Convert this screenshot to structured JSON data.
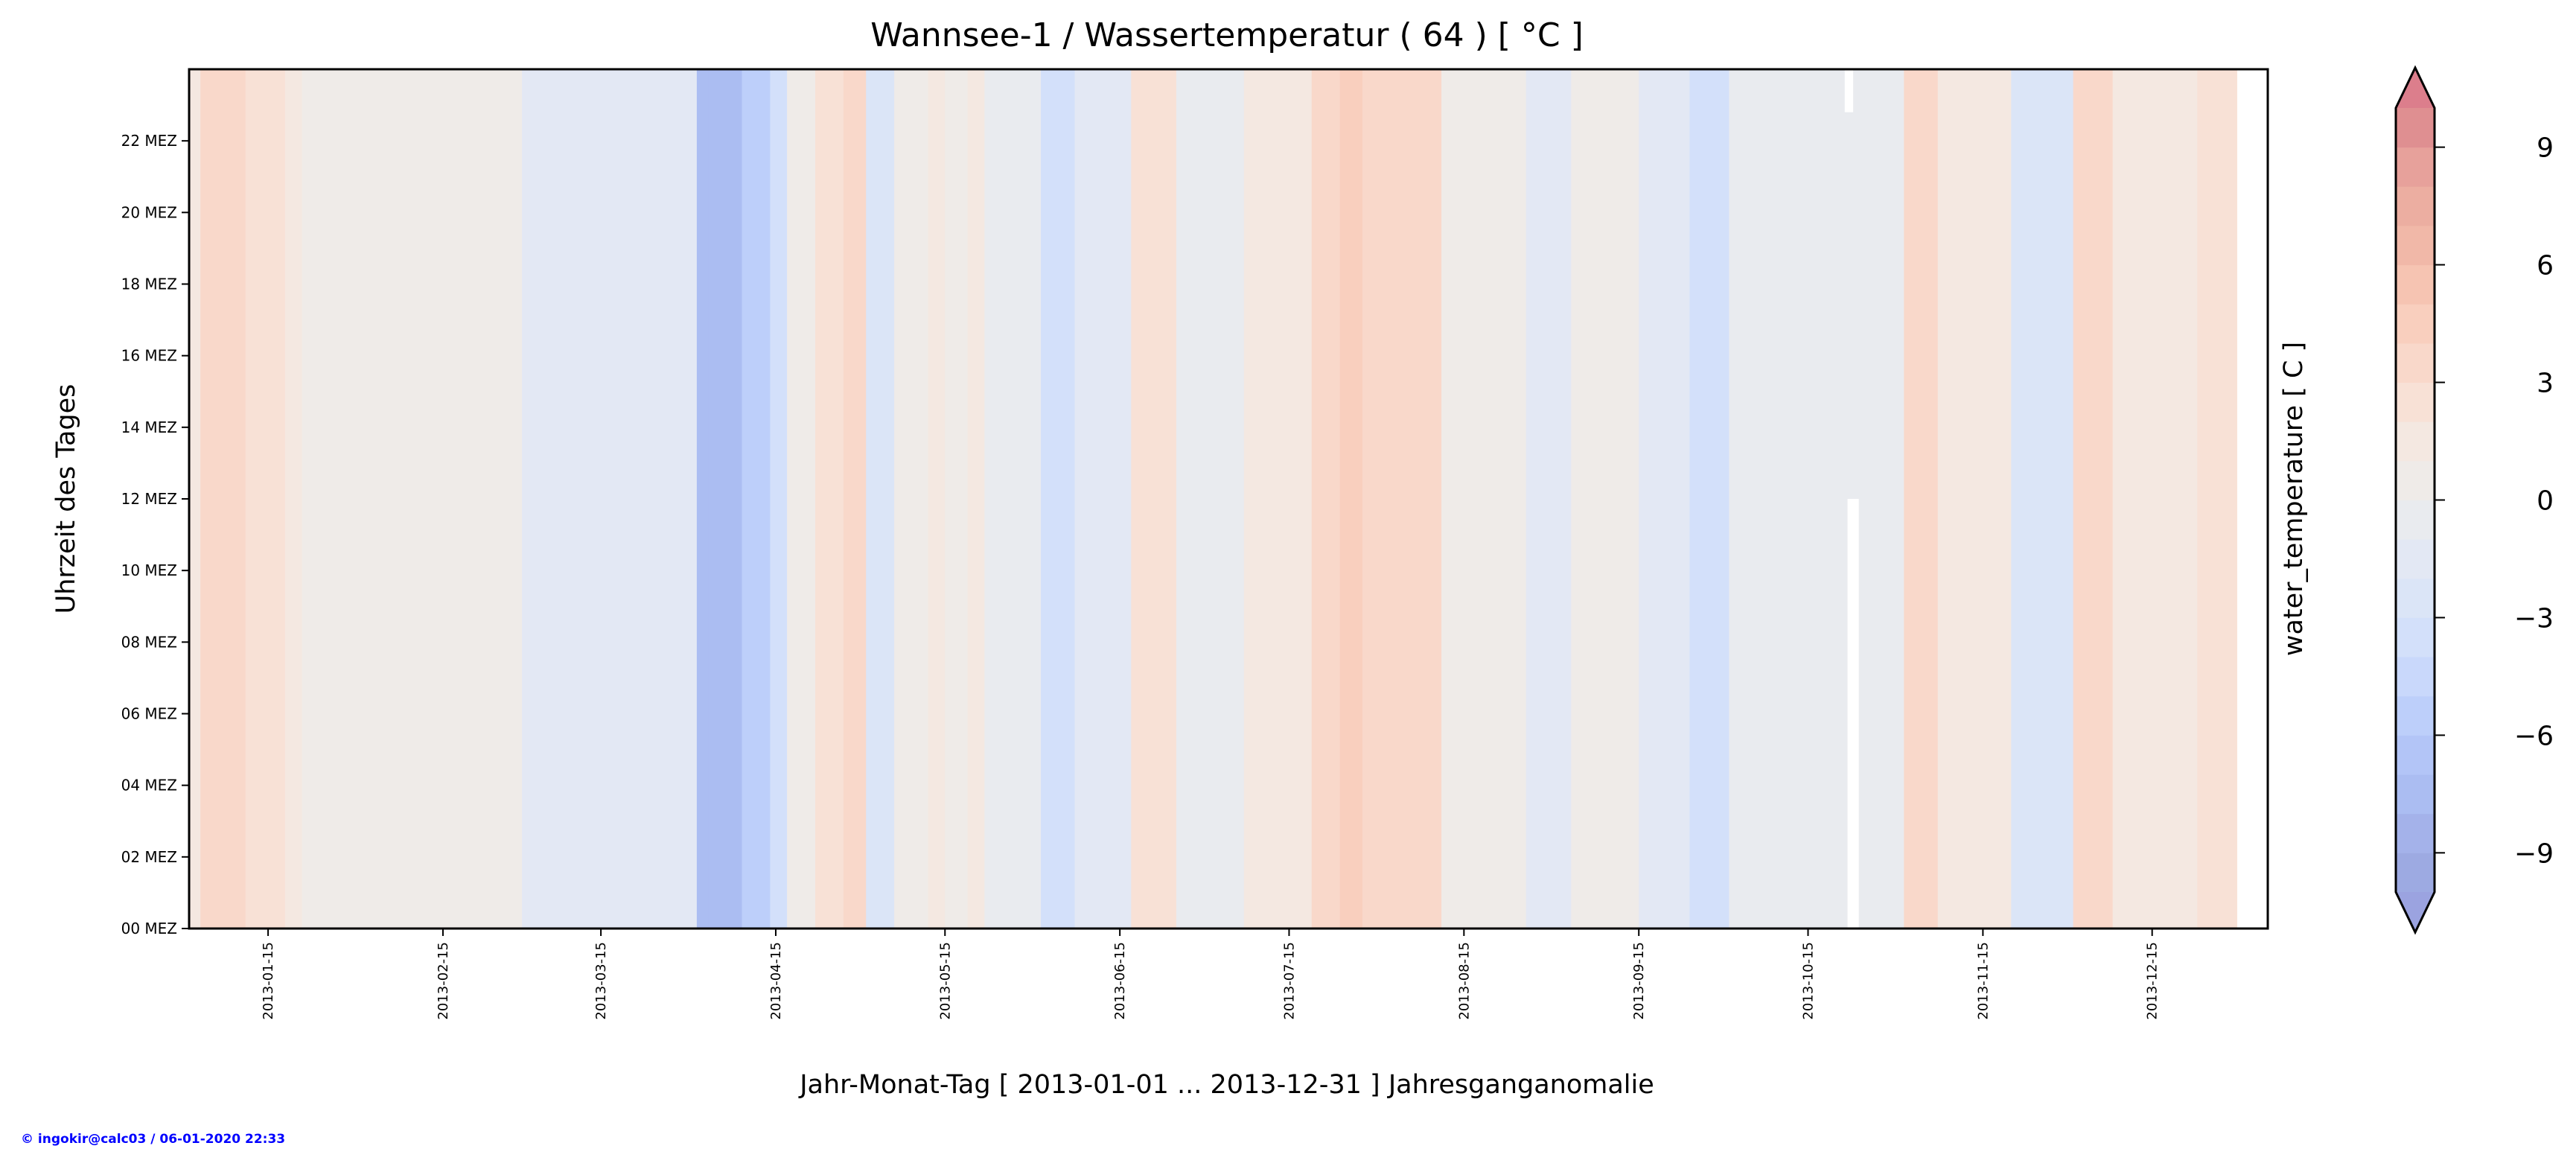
{
  "chart_data": {
    "type": "heatmap",
    "title": "Wannsee-1 / Wassertemperatur ( 64 ) [ °C ]",
    "xlabel": "Jahr-Monat-Tag [ 2013-01-01 ... 2013-12-31 ] Jahresganganomalie",
    "ylabel": "Uhrzeit des Tages",
    "x_unit": "day of year 2013 (0 = 2013-01-01)",
    "xlim": [
      0,
      368.5
    ],
    "ylim": [
      0,
      24
    ],
    "x_ticks": [
      {
        "day": 14,
        "label": "2013-01-15"
      },
      {
        "day": 45,
        "label": "2013-02-15"
      },
      {
        "day": 73,
        "label": "2013-03-15"
      },
      {
        "day": 104,
        "label": "2013-04-15"
      },
      {
        "day": 134,
        "label": "2013-05-15"
      },
      {
        "day": 165,
        "label": "2013-06-15"
      },
      {
        "day": 195,
        "label": "2013-07-15"
      },
      {
        "day": 226,
        "label": "2013-08-15"
      },
      {
        "day": 257,
        "label": "2013-09-15"
      },
      {
        "day": 287,
        "label": "2013-10-15"
      },
      {
        "day": 318,
        "label": "2013-11-15"
      },
      {
        "day": 348,
        "label": "2013-12-15"
      }
    ],
    "y_ticks": [
      {
        "hour": 0,
        "label": "00 MEZ"
      },
      {
        "hour": 2,
        "label": "02 MEZ"
      },
      {
        "hour": 4,
        "label": "04 MEZ"
      },
      {
        "hour": 6,
        "label": "06 MEZ"
      },
      {
        "hour": 8,
        "label": "08 MEZ"
      },
      {
        "hour": 10,
        "label": "10 MEZ"
      },
      {
        "hour": 12,
        "label": "12 MEZ"
      },
      {
        "hour": 14,
        "label": "14 MEZ"
      },
      {
        "hour": 16,
        "label": "16 MEZ"
      },
      {
        "hour": 18,
        "label": "18 MEZ"
      },
      {
        "hour": 20,
        "label": "20 MEZ"
      },
      {
        "hour": 22,
        "label": "22 MEZ"
      }
    ],
    "segments": [
      {
        "start": 0,
        "end": 2,
        "value": 1.5
      },
      {
        "start": 2,
        "end": 10,
        "value": 3.5
      },
      {
        "start": 10,
        "end": 17,
        "value": 2.5
      },
      {
        "start": 17,
        "end": 20,
        "value": 1.2
      },
      {
        "start": 20,
        "end": 59,
        "value": 0.5
      },
      {
        "start": 59,
        "end": 76,
        "value": -1.5
      },
      {
        "start": 76,
        "end": 90,
        "value": -1.2
      },
      {
        "start": 90,
        "end": 92,
        "value": -7.5
      },
      {
        "start": 92,
        "end": 98,
        "value": -7.2
      },
      {
        "start": 98,
        "end": 103,
        "value": -5.2
      },
      {
        "start": 103,
        "end": 106,
        "value": -3.2
      },
      {
        "start": 106,
        "end": 111,
        "value": 0.5
      },
      {
        "start": 111,
        "end": 116,
        "value": 2.5
      },
      {
        "start": 116,
        "end": 120,
        "value": 3.8
      },
      {
        "start": 120,
        "end": 125,
        "value": -2.5
      },
      {
        "start": 125,
        "end": 131,
        "value": 0.3
      },
      {
        "start": 131,
        "end": 134,
        "value": 1.5
      },
      {
        "start": 134,
        "end": 138,
        "value": 0.3
      },
      {
        "start": 138,
        "end": 141,
        "value": 1.5
      },
      {
        "start": 141,
        "end": 151,
        "value": -0.5
      },
      {
        "start": 151,
        "end": 157,
        "value": -3.8
      },
      {
        "start": 157,
        "end": 167,
        "value": -1.2
      },
      {
        "start": 167,
        "end": 175,
        "value": 2.5
      },
      {
        "start": 175,
        "end": 187,
        "value": -0.3
      },
      {
        "start": 187,
        "end": 199,
        "value": 1.5
      },
      {
        "start": 199,
        "end": 204,
        "value": 3.5
      },
      {
        "start": 204,
        "end": 208,
        "value": 4.8
      },
      {
        "start": 208,
        "end": 222,
        "value": 3.2
      },
      {
        "start": 222,
        "end": 237,
        "value": 0.5
      },
      {
        "start": 237,
        "end": 245,
        "value": -1.5
      },
      {
        "start": 245,
        "end": 257,
        "value": 0.5
      },
      {
        "start": 257,
        "end": 266,
        "value": -1.5
      },
      {
        "start": 266,
        "end": 273,
        "value": -3.5
      },
      {
        "start": 273,
        "end": 286,
        "value": -0.5
      },
      {
        "start": 286,
        "end": 304,
        "value": -1.0
      },
      {
        "start": 304,
        "end": 310,
        "value": 3.0
      },
      {
        "start": 310,
        "end": 323,
        "value": 1.5
      },
      {
        "start": 323,
        "end": 334,
        "value": -3.0
      },
      {
        "start": 334,
        "end": 341,
        "value": 3.0
      },
      {
        "start": 341,
        "end": 356,
        "value": 1.5
      },
      {
        "start": 356,
        "end": 363,
        "value": 2.0
      }
    ],
    "missing": [
      {
        "start": 294,
        "end": 296,
        "hour_from": 0,
        "hour_to": 12
      },
      {
        "start": 293.5,
        "end": 295,
        "hour_from": 22.8,
        "hour_to": 24
      }
    ],
    "colorbar": {
      "label": "water_temperature [ C ]",
      "levels": [
        -10,
        10
      ],
      "step": 1,
      "extend": "both",
      "ticks": [
        {
          "value": 9,
          "label": "9"
        },
        {
          "value": 6,
          "label": "6"
        },
        {
          "value": 3,
          "label": "3"
        },
        {
          "value": 0,
          "label": "0"
        },
        {
          "value": -3,
          "label": "−3"
        },
        {
          "value": -6,
          "label": "−6"
        },
        {
          "value": -9,
          "label": "−9"
        }
      ],
      "colors_low_to_high": [
        "#9daae2",
        "#a4b2ea",
        "#abbdf2",
        "#b3c5f7",
        "#bdcffa",
        "#c9d8fb",
        "#d3e0fa",
        "#dbe5f7",
        "#e3e8f4",
        "#e9ebef",
        "#efebe8",
        "#f4e8e1",
        "#f8e1d6",
        "#f9d8ca",
        "#f9cfbe",
        "#f6c4b2",
        "#f1b8a8",
        "#ecaea1",
        "#e7a19b",
        "#df8f91"
      ],
      "under_color": "#9ba3e0",
      "over_color": "#dc7e8c"
    }
  },
  "footer": "© ingokir@calc03 / 06-01-2020 22:33"
}
